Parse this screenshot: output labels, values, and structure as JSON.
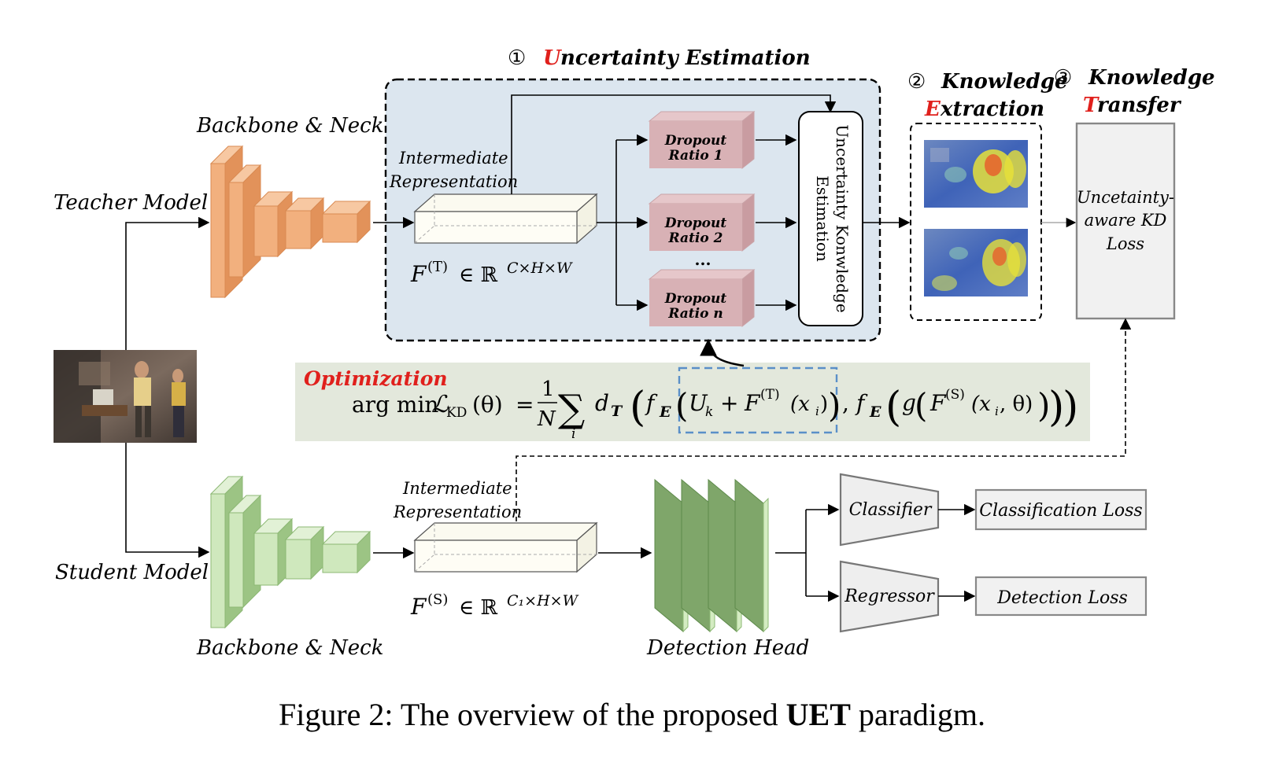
{
  "stages": {
    "s1": {
      "num": "①",
      "first": "U",
      "rest": "ncertainty Estimation"
    },
    "s2": {
      "num": "②",
      "line1": "Knowledge",
      "first": "E",
      "rest": "xtraction"
    },
    "s3": {
      "num": "③",
      "line1": "Knowledge",
      "first": "T",
      "rest": "ransfer"
    }
  },
  "labels": {
    "teacher_model": "Teacher Model",
    "student_model": "Student Model",
    "backbone_teacher": "Backbone & Neck",
    "backbone_student": "Backbone & Neck",
    "inter_rep_teacher_1": "Intermediate",
    "inter_rep_teacher_2": "Representation",
    "inter_rep_student_1": "Intermediate",
    "inter_rep_student_2": "Representation",
    "detection_head": "Detection Head"
  },
  "dropout": [
    {
      "line1": "Dropout",
      "line2": "Ratio 1"
    },
    {
      "line1": "Dropout",
      "line2": "Ratio 2"
    },
    {
      "line1": "Dropout",
      "line2": "Ratio n"
    }
  ],
  "dropout_ellipsis": "...",
  "uncertainty_box": {
    "line1": "Uncertainty Konwledge",
    "line2": "Estimation"
  },
  "kd_loss": {
    "line1": "Uncetainty-",
    "line2": "aware KD",
    "line3": "Loss"
  },
  "heads": {
    "classifier": "Classifier",
    "regressor": "Regressor",
    "classification_loss": "Classification Loss",
    "detection_loss": "Detection Loss"
  },
  "optimization": {
    "label": "Optimization",
    "argmin": "arg min",
    "loss": "KD",
    "theta": "(θ)",
    "eq": "=",
    "sum": "∑",
    "sub_i": "i",
    "one": "1",
    "N": "N",
    "d": "d",
    "T": "T",
    "f": "f",
    "E": "E",
    "uk": "U",
    "k": "k",
    "plus": "+",
    "teacher_feat": "(T)",
    "xi": "(x",
    "student_feat": "(S)",
    "g": "g",
    "xi_theta": "(x",
    "theta2": ", θ)"
  },
  "math": {
    "teacher_F": "F",
    "teacher_sup": "(T)",
    "teacher_space": "∈ ℝ",
    "teacher_dims": "C×H×W",
    "student_F": "F",
    "student_sup": "(S)",
    "student_space": "∈ ℝ",
    "student_dims": "C₁×H×W"
  },
  "caption": {
    "prefix": "Figure 2: The overview of the proposed ",
    "bold": "UET",
    "suffix": " paradigm."
  },
  "colors": {
    "teacher_block": "#f2b07e",
    "teacher_block_dark": "#e2925a",
    "student_block": "#cfe8bd",
    "student_block_dark": "#9cc484",
    "dropout_box": "#d8b1b5",
    "uncertainty_bg": "#dce6ef",
    "opt_bg": "#e3e8dc",
    "accent_red": "#e0201c",
    "dash_blue": "#5a8fc8"
  }
}
